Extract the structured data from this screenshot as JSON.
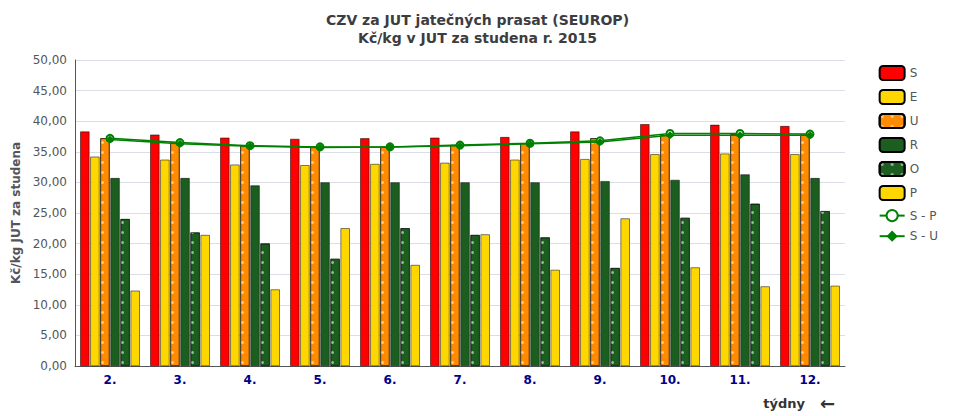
{
  "chart_data": {
    "type": "bar",
    "title": "CZV za JUT jatečných prasat (SEUROP)\nKč/kg v JUT za studena r. 2015",
    "xlabel": "týdny",
    "ylabel": "Kč/kg JUT za studena",
    "annotations": [
      "←"
    ],
    "categories": [
      "2.",
      "3.",
      "4.",
      "5.",
      "6.",
      "7.",
      "8.",
      "9.",
      "10.",
      "11.",
      "12."
    ],
    "series": [
      {
        "name": "S",
        "type": "bar",
        "color": "#FF0000",
        "values": [
          38.3,
          37.8,
          37.3,
          37.1,
          37.2,
          37.3,
          37.4,
          38.3,
          39.5,
          39.4,
          39.2
        ]
      },
      {
        "name": "E",
        "type": "bar",
        "color": "#FFD700",
        "values": [
          34.2,
          33.7,
          32.9,
          32.8,
          33.0,
          33.2,
          33.7,
          33.8,
          34.6,
          34.7,
          34.6
        ]
      },
      {
        "name": "U",
        "type": "bar",
        "color": "#FF8C00",
        "marker": "dots",
        "values": [
          37.2,
          36.5,
          36.0,
          35.8,
          35.8,
          36.1,
          36.4,
          37.2,
          37.7,
          37.9,
          37.8
        ]
      },
      {
        "name": "R",
        "type": "bar",
        "color": "#1B5E20",
        "values": [
          30.7,
          30.7,
          29.5,
          30.0,
          30.0,
          30.0,
          30.0,
          30.2,
          30.4,
          31.3,
          30.7
        ]
      },
      {
        "name": "O",
        "type": "bar",
        "color": "#1B5E20",
        "marker": "dots",
        "values": [
          24.0,
          21.8,
          20.0,
          17.5,
          22.5,
          21.4,
          21.0,
          16.0,
          24.2,
          26.5,
          25.3
        ]
      },
      {
        "name": "P",
        "type": "bar",
        "color": "#FFD700",
        "values": [
          12.3,
          21.4,
          12.5,
          22.5,
          16.5,
          21.5,
          15.7,
          24.1,
          16.1,
          13.0,
          13.1
        ]
      },
      {
        "name": "S - P",
        "type": "line",
        "color": "#008000",
        "marker": "circle",
        "values": [
          37.2,
          36.5,
          36.0,
          35.8,
          35.8,
          36.1,
          36.4,
          36.8,
          38.0,
          38.0,
          37.9
        ]
      },
      {
        "name": "S - U",
        "type": "line",
        "color": "#008000",
        "marker": "diamond",
        "values": [
          37.0,
          36.3,
          35.9,
          35.7,
          35.8,
          36.0,
          36.3,
          36.6,
          37.7,
          37.7,
          37.7
        ]
      }
    ],
    "ylim": [
      0,
      50
    ],
    "yticks": [
      {
        "value": 0,
        "label": "0,00"
      },
      {
        "value": 5,
        "label": "5,00"
      },
      {
        "value": 10,
        "label": "10,00"
      },
      {
        "value": 15,
        "label": "15,00"
      },
      {
        "value": 20,
        "label": "20,00"
      },
      {
        "value": 25,
        "label": "25,00"
      },
      {
        "value": 30,
        "label": "30,00"
      },
      {
        "value": 35,
        "label": "35,00"
      },
      {
        "value": 40,
        "label": "40,00"
      },
      {
        "value": 45,
        "label": "45,00"
      },
      {
        "value": 50,
        "label": "50,00"
      }
    ],
    "grid": true,
    "legend": "right"
  }
}
